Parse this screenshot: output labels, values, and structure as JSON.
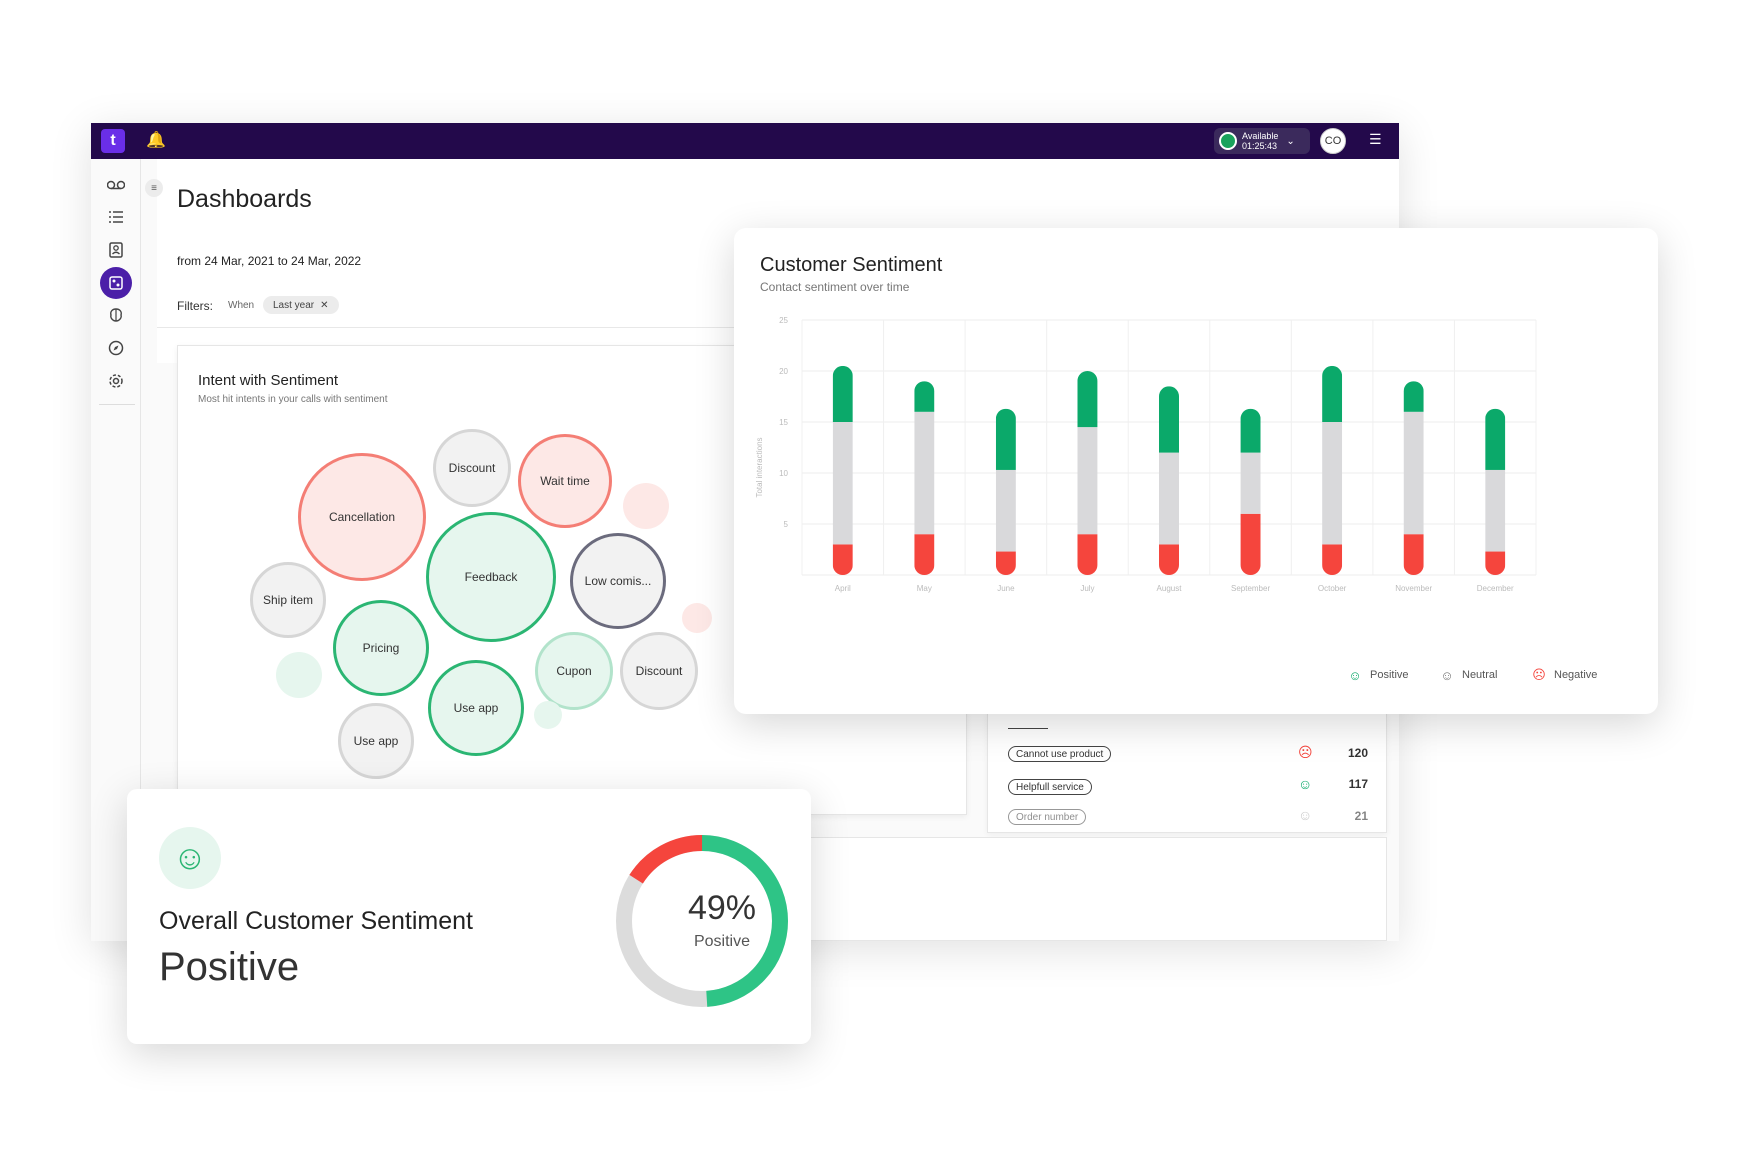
{
  "app": {
    "logo_letter": "t",
    "status": {
      "label": "Available",
      "time": "01:25:43"
    },
    "avatar_initials": "CO",
    "page_title": "Dashboards",
    "date_range": "from 24 Mar, 2021 to 24 Mar, 2022",
    "filters": {
      "label": "Filters:",
      "when": "When",
      "chip": "Last year"
    },
    "sidebar_icons": [
      "voicemail-icon",
      "list-icon",
      "contacts-icon",
      "dashboard-icon",
      "brain-icon",
      "compass-icon",
      "settings-icon"
    ]
  },
  "intent": {
    "title": "Intent with Sentiment",
    "subtitle": "Most hit intents in your calls with sentiment",
    "bubbles": [
      {
        "label": "Cancellation",
        "sentiment": "negative"
      },
      {
        "label": "Discount",
        "sentiment": "neutral"
      },
      {
        "label": "Wait time",
        "sentiment": "negative"
      },
      {
        "label": "Feedback",
        "sentiment": "positive"
      },
      {
        "label": "Low comis...",
        "sentiment": "dark"
      },
      {
        "label": "Ship item",
        "sentiment": "neutral"
      },
      {
        "label": "Pricing",
        "sentiment": "positive"
      },
      {
        "label": "Cupon",
        "sentiment": "mint"
      },
      {
        "label": "Discount",
        "sentiment": "neutral"
      },
      {
        "label": "Use app",
        "sentiment": "positive"
      },
      {
        "label": "Use app",
        "sentiment": "neutral"
      }
    ]
  },
  "list": {
    "rows": [
      {
        "label": "Cannot use product",
        "sentiment": "negative",
        "value": "120"
      },
      {
        "label": "Helpfull service",
        "sentiment": "positive",
        "value": "117"
      },
      {
        "label": "Order number",
        "sentiment": "neutral",
        "value": "21"
      }
    ]
  },
  "customer_sentiment": {
    "title": "Customer Sentiment",
    "subtitle": "Contact sentiment over time",
    "legend": {
      "positive": "Positive",
      "neutral": "Neutral",
      "negative": "Negative"
    }
  },
  "overall": {
    "title": "Overall Customer Sentiment",
    "value": "Positive",
    "percent_label": "49%",
    "percent_sub": "Positive",
    "percent": 49
  },
  "colors": {
    "positive": "#0ba96a",
    "neutral": "#d9d9db",
    "negative": "#f5453d",
    "brand": "#23094b"
  },
  "chart_data": {
    "type": "bar",
    "stacked": true,
    "ylabel": "Total interactions",
    "ylim": [
      0,
      25
    ],
    "yticks": [
      5,
      10,
      15,
      20,
      25
    ],
    "categories": [
      "April",
      "May",
      "June",
      "July",
      "August",
      "September",
      "October",
      "November",
      "December"
    ],
    "series": [
      {
        "name": "Negative",
        "values": [
          3,
          4,
          2.3,
          4,
          3,
          6,
          3,
          4,
          2.3
        ]
      },
      {
        "name": "Neutral",
        "values": [
          12,
          12,
          8,
          10.5,
          9,
          6,
          12,
          12,
          8
        ]
      },
      {
        "name": "Positive",
        "values": [
          5.5,
          3,
          6,
          5.5,
          6.5,
          4.3,
          5.5,
          3,
          6
        ]
      }
    ]
  }
}
